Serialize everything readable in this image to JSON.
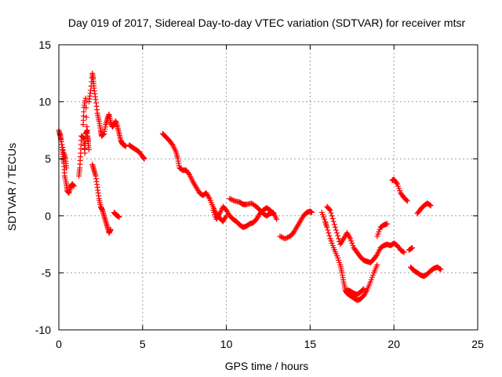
{
  "chart_data": {
    "type": "scatter",
    "title": "Day 019 of 2017, Sidereal Day-to-day VTEC variation (SDTVAR) for receiver mtsr",
    "xlabel": "GPS time / hours",
    "ylabel": "SDTVAR / TECUs",
    "xlim": [
      0,
      25
    ],
    "ylim": [
      -10,
      15
    ],
    "xticks": [
      "0",
      "5",
      "10",
      "15",
      "20",
      "25"
    ],
    "yticks": [
      "-10",
      "-5",
      "0",
      "5",
      "10",
      "15"
    ],
    "xtick_values": [
      0,
      5,
      10,
      15,
      20,
      25
    ],
    "ytick_values": [
      -10,
      -5,
      0,
      5,
      10,
      15
    ],
    "grid": true,
    "marker": "plus",
    "color": "#ff0000",
    "series": [
      {
        "name": "mtsr",
        "segments": [
          [
            [
              0.0,
              7.5
            ],
            [
              0.1,
              7.0
            ],
            [
              0.2,
              6.0
            ],
            [
              0.25,
              5.2
            ],
            [
              0.3,
              4.6
            ],
            [
              0.35,
              3.5
            ],
            [
              0.45,
              2.8
            ],
            [
              0.5,
              2.2
            ],
            [
              0.6,
              2.0
            ],
            [
              0.7,
              2.5
            ],
            [
              0.8,
              2.8
            ],
            [
              0.9,
              2.6
            ]
          ],
          [
            [
              0.05,
              7.2
            ],
            [
              0.15,
              6.5
            ],
            [
              0.3,
              5.5
            ],
            [
              0.4,
              5.0
            ],
            [
              0.45,
              4.2
            ]
          ],
          [
            [
              1.2,
              3.5
            ],
            [
              1.25,
              4.2
            ],
            [
              1.3,
              5.5
            ],
            [
              1.35,
              7.0
            ],
            [
              1.5,
              6.8
            ],
            [
              1.55,
              5.5
            ],
            [
              1.6,
              7.2
            ],
            [
              1.7,
              7.5
            ],
            [
              1.75,
              6.5
            ]
          ],
          [
            [
              1.45,
              8.0
            ],
            [
              1.5,
              9.5
            ],
            [
              1.6,
              10.3
            ],
            [
              1.7,
              7.0
            ],
            [
              1.75,
              6.5
            ],
            [
              1.8,
              5.8
            ]
          ],
          [
            [
              1.8,
              10.0
            ],
            [
              1.9,
              11.0
            ],
            [
              2.0,
              12.5
            ],
            [
              2.05,
              12.0
            ],
            [
              2.1,
              11.2
            ],
            [
              2.2,
              10.2
            ],
            [
              2.3,
              9.0
            ],
            [
              2.4,
              8.3
            ],
            [
              2.5,
              7.5
            ],
            [
              2.55,
              7.0
            ],
            [
              2.7,
              7.2
            ],
            [
              2.8,
              8.0
            ],
            [
              2.9,
              8.5
            ],
            [
              3.0,
              8.9
            ],
            [
              3.1,
              8.2
            ],
            [
              3.2,
              7.8
            ],
            [
              3.3,
              8.0
            ],
            [
              3.4,
              8.3
            ],
            [
              3.5,
              7.8
            ],
            [
              3.6,
              7.2
            ],
            [
              3.7,
              6.6
            ],
            [
              3.8,
              6.3
            ],
            [
              3.9,
              6.2
            ],
            [
              4.0,
              6.1
            ]
          ],
          [
            [
              2.0,
              4.5
            ],
            [
              2.1,
              4.0
            ],
            [
              2.2,
              3.5
            ],
            [
              2.3,
              2.5
            ],
            [
              2.4,
              1.5
            ],
            [
              2.5,
              0.8
            ],
            [
              2.6,
              0.5
            ],
            [
              2.7,
              0.0
            ],
            [
              2.8,
              -0.5
            ],
            [
              2.9,
              -1.0
            ],
            [
              3.0,
              -1.5
            ],
            [
              3.1,
              -1.2
            ]
          ],
          [
            [
              3.3,
              0.3
            ],
            [
              3.4,
              0.1
            ],
            [
              3.5,
              0.0
            ],
            [
              3.6,
              -0.1
            ]
          ],
          [
            [
              4.2,
              6.2
            ],
            [
              4.4,
              6.0
            ],
            [
              4.6,
              5.8
            ],
            [
              4.8,
              5.6
            ],
            [
              5.0,
              5.2
            ],
            [
              5.1,
              5.0
            ]
          ],
          [
            [
              6.2,
              7.2
            ],
            [
              6.4,
              6.9
            ],
            [
              6.6,
              6.6
            ],
            [
              6.8,
              6.2
            ],
            [
              7.0,
              5.6
            ],
            [
              7.1,
              5.0
            ],
            [
              7.2,
              4.2
            ],
            [
              7.4,
              4.0
            ],
            [
              7.6,
              4.0
            ],
            [
              7.8,
              3.6
            ],
            [
              8.0,
              3.0
            ],
            [
              8.2,
              2.5
            ],
            [
              8.4,
              2.0
            ],
            [
              8.6,
              1.8
            ],
            [
              8.8,
              2.0
            ],
            [
              9.0,
              1.5
            ],
            [
              9.2,
              0.8
            ],
            [
              9.4,
              0.2
            ],
            [
              9.6,
              -0.2
            ],
            [
              9.8,
              -0.5
            ],
            [
              10.0,
              0.0
            ]
          ],
          [
            [
              9.2,
              0.5
            ],
            [
              9.4,
              -0.3
            ],
            [
              9.6,
              0.2
            ],
            [
              9.8,
              0.8
            ],
            [
              10.0,
              0.5
            ],
            [
              10.2,
              0.0
            ],
            [
              10.4,
              -0.3
            ],
            [
              10.6,
              -0.5
            ],
            [
              10.8,
              -0.8
            ],
            [
              11.0,
              -1.0
            ],
            [
              11.2,
              -0.9
            ],
            [
              11.4,
              -0.7
            ],
            [
              11.6,
              -0.6
            ],
            [
              11.8,
              -0.3
            ],
            [
              12.0,
              0.2
            ],
            [
              12.2,
              0.5
            ],
            [
              12.4,
              0.7
            ],
            [
              12.6,
              0.5
            ],
            [
              12.8,
              0.2
            ]
          ],
          [
            [
              10.2,
              1.5
            ],
            [
              10.5,
              1.3
            ],
            [
              10.8,
              1.2
            ],
            [
              11.0,
              1.0
            ],
            [
              11.2,
              1.0
            ],
            [
              11.5,
              1.1
            ],
            [
              11.8,
              0.8
            ],
            [
              12.0,
              0.5
            ],
            [
              12.2,
              0.2
            ],
            [
              12.4,
              0.0
            ],
            [
              12.6,
              0.2
            ],
            [
              12.8,
              0.3
            ],
            [
              13.0,
              -0.3
            ]
          ],
          [
            [
              13.2,
              -1.8
            ],
            [
              13.5,
              -2.0
            ],
            [
              13.8,
              -1.8
            ],
            [
              14.0,
              -1.5
            ],
            [
              14.2,
              -1.0
            ],
            [
              14.4,
              -0.5
            ],
            [
              14.6,
              0.0
            ],
            [
              14.8,
              0.3
            ],
            [
              15.0,
              0.4
            ],
            [
              15.1,
              0.3
            ]
          ],
          [
            [
              15.7,
              0.3
            ],
            [
              15.9,
              -0.5
            ],
            [
              16.0,
              -1.0
            ],
            [
              16.2,
              -2.0
            ],
            [
              16.4,
              -2.8
            ],
            [
              16.6,
              -3.5
            ],
            [
              16.8,
              -4.3
            ],
            [
              16.9,
              -5.0
            ],
            [
              17.0,
              -5.8
            ],
            [
              17.1,
              -6.5
            ],
            [
              17.2,
              -6.8
            ],
            [
              17.4,
              -7.0
            ],
            [
              17.6,
              -7.2
            ],
            [
              17.8,
              -7.4
            ],
            [
              18.0,
              -7.3
            ],
            [
              18.2,
              -7.0
            ],
            [
              18.4,
              -6.5
            ],
            [
              18.6,
              -5.8
            ],
            [
              18.8,
              -5.0
            ],
            [
              19.0,
              -4.3
            ]
          ],
          [
            [
              16.0,
              0.8
            ],
            [
              16.2,
              0.5
            ],
            [
              16.4,
              -0.5
            ],
            [
              16.6,
              -1.5
            ],
            [
              16.8,
              -2.5
            ],
            [
              17.0,
              -2.0
            ],
            [
              17.2,
              -1.5
            ],
            [
              17.4,
              -2.0
            ],
            [
              17.6,
              -2.8
            ],
            [
              17.8,
              -3.2
            ],
            [
              18.0,
              -3.6
            ],
            [
              18.2,
              -3.9
            ],
            [
              18.4,
              -4.0
            ],
            [
              18.6,
              -4.1
            ],
            [
              18.8,
              -3.8
            ],
            [
              19.0,
              -3.4
            ],
            [
              19.2,
              -2.8
            ],
            [
              19.4,
              -2.6
            ],
            [
              19.6,
              -2.5
            ],
            [
              19.8,
              -2.6
            ],
            [
              20.0,
              -2.4
            ],
            [
              20.2,
              -2.6
            ],
            [
              20.4,
              -3.0
            ],
            [
              20.6,
              -3.2
            ]
          ],
          [
            [
              17.2,
              -6.5
            ],
            [
              17.4,
              -6.6
            ],
            [
              17.6,
              -6.8
            ],
            [
              17.8,
              -6.9
            ],
            [
              18.0,
              -6.7
            ],
            [
              18.2,
              -6.4
            ]
          ],
          [
            [
              19.0,
              -1.8
            ],
            [
              19.2,
              -1.0
            ],
            [
              19.4,
              -0.8
            ],
            [
              19.6,
              -0.7
            ]
          ],
          [
            [
              19.9,
              3.1
            ],
            [
              20.0,
              3.2
            ],
            [
              20.2,
              2.8
            ],
            [
              20.4,
              2.0
            ],
            [
              20.6,
              1.6
            ],
            [
              20.8,
              1.3
            ]
          ],
          [
            [
              20.9,
              -3.0
            ],
            [
              21.1,
              -2.8
            ]
          ],
          [
            [
              21.0,
              -4.5
            ],
            [
              21.2,
              -4.8
            ],
            [
              21.4,
              -5.0
            ],
            [
              21.6,
              -5.2
            ],
            [
              21.8,
              -5.3
            ],
            [
              22.0,
              -5.1
            ],
            [
              22.2,
              -4.8
            ],
            [
              22.4,
              -4.6
            ],
            [
              22.6,
              -4.5
            ],
            [
              22.8,
              -4.7
            ]
          ],
          [
            [
              21.4,
              0.2
            ],
            [
              21.6,
              0.6
            ],
            [
              21.8,
              0.9
            ],
            [
              22.0,
              1.1
            ],
            [
              22.2,
              0.9
            ]
          ]
        ]
      }
    ]
  }
}
